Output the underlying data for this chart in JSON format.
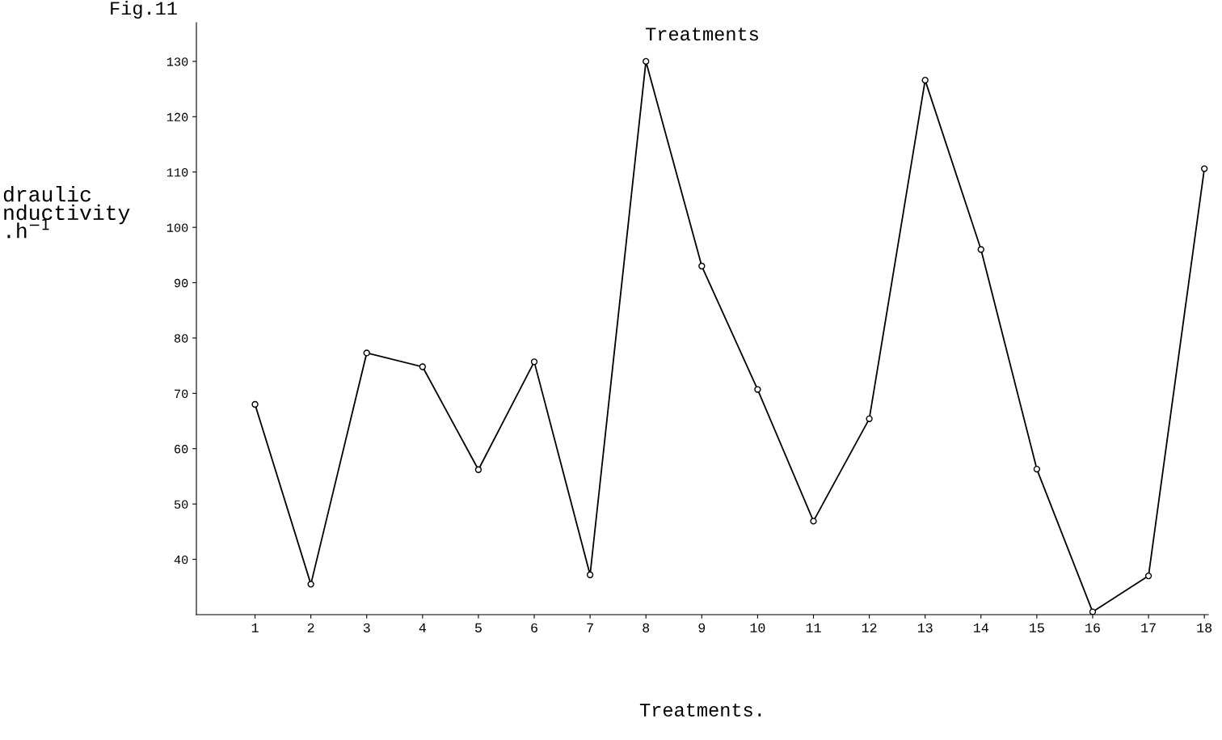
{
  "chart_data": {
    "type": "line",
    "title": "Treatments",
    "xlabel": "Treatments.",
    "ylabel": "draulic\nnductivity\n.h$^{−1}$",
    "annotations": [
      "Fig.11"
    ],
    "categories": [
      "1",
      "2",
      "3",
      "4",
      "5",
      "6",
      "7",
      "8",
      "9",
      "10",
      "11",
      "12",
      "13",
      "14",
      "15",
      "16",
      "17",
      "18"
    ],
    "series": [
      {
        "color": "#000000",
        "values": [
          68,
          35.5,
          77.3,
          74.8,
          56.2,
          75.7,
          37.2,
          130,
          93,
          70.7,
          46.9,
          65.4,
          126.6,
          96,
          56.3,
          30.5,
          37,
          110.6
        ]
      }
    ],
    "ylim": [
      30,
      137
    ],
    "yticks": [
      40,
      50,
      60,
      70,
      80,
      90,
      100,
      110,
      120,
      130
    ],
    "marker": "circle",
    "line_style": "solid",
    "grid": false,
    "legend": false
  }
}
